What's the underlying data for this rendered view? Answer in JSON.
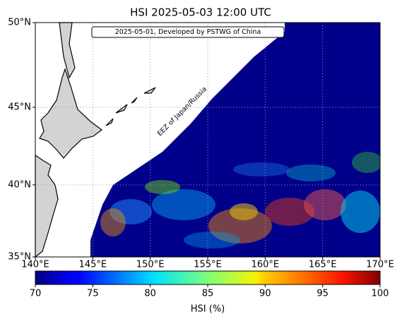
{
  "chart_data": {
    "type": "map",
    "title": "HSI 2025-05-03 12:00 UTC",
    "annotations": [
      "2025-05-01, Developed by PSTWG of China",
      "EEZ of Japan/Russia"
    ],
    "projection": "mercator",
    "ocean_color": "#00008b",
    "grid": true,
    "xlim": [
      140,
      170
    ],
    "ylim": [
      35,
      50
    ],
    "xticks": [
      {
        "value": 140,
        "label": "140°E"
      },
      {
        "value": 145,
        "label": "145°E"
      },
      {
        "value": 150,
        "label": "150°E"
      },
      {
        "value": 155,
        "label": "155°E"
      },
      {
        "value": 160,
        "label": "160°E"
      },
      {
        "value": 165,
        "label": "165°E"
      },
      {
        "value": 170,
        "label": "170°E"
      }
    ],
    "yticks": [
      {
        "value": 35,
        "label": "35°N"
      },
      {
        "value": 40,
        "label": "40°N"
      },
      {
        "value": 45,
        "label": "45°N"
      },
      {
        "value": 50,
        "label": "50°N"
      }
    ],
    "colorbar": {
      "label": "HSI (%)",
      "colormap": "jet",
      "lim": [
        70,
        100
      ],
      "ticks": [
        70,
        75,
        80,
        85,
        90,
        95,
        100
      ]
    }
  }
}
